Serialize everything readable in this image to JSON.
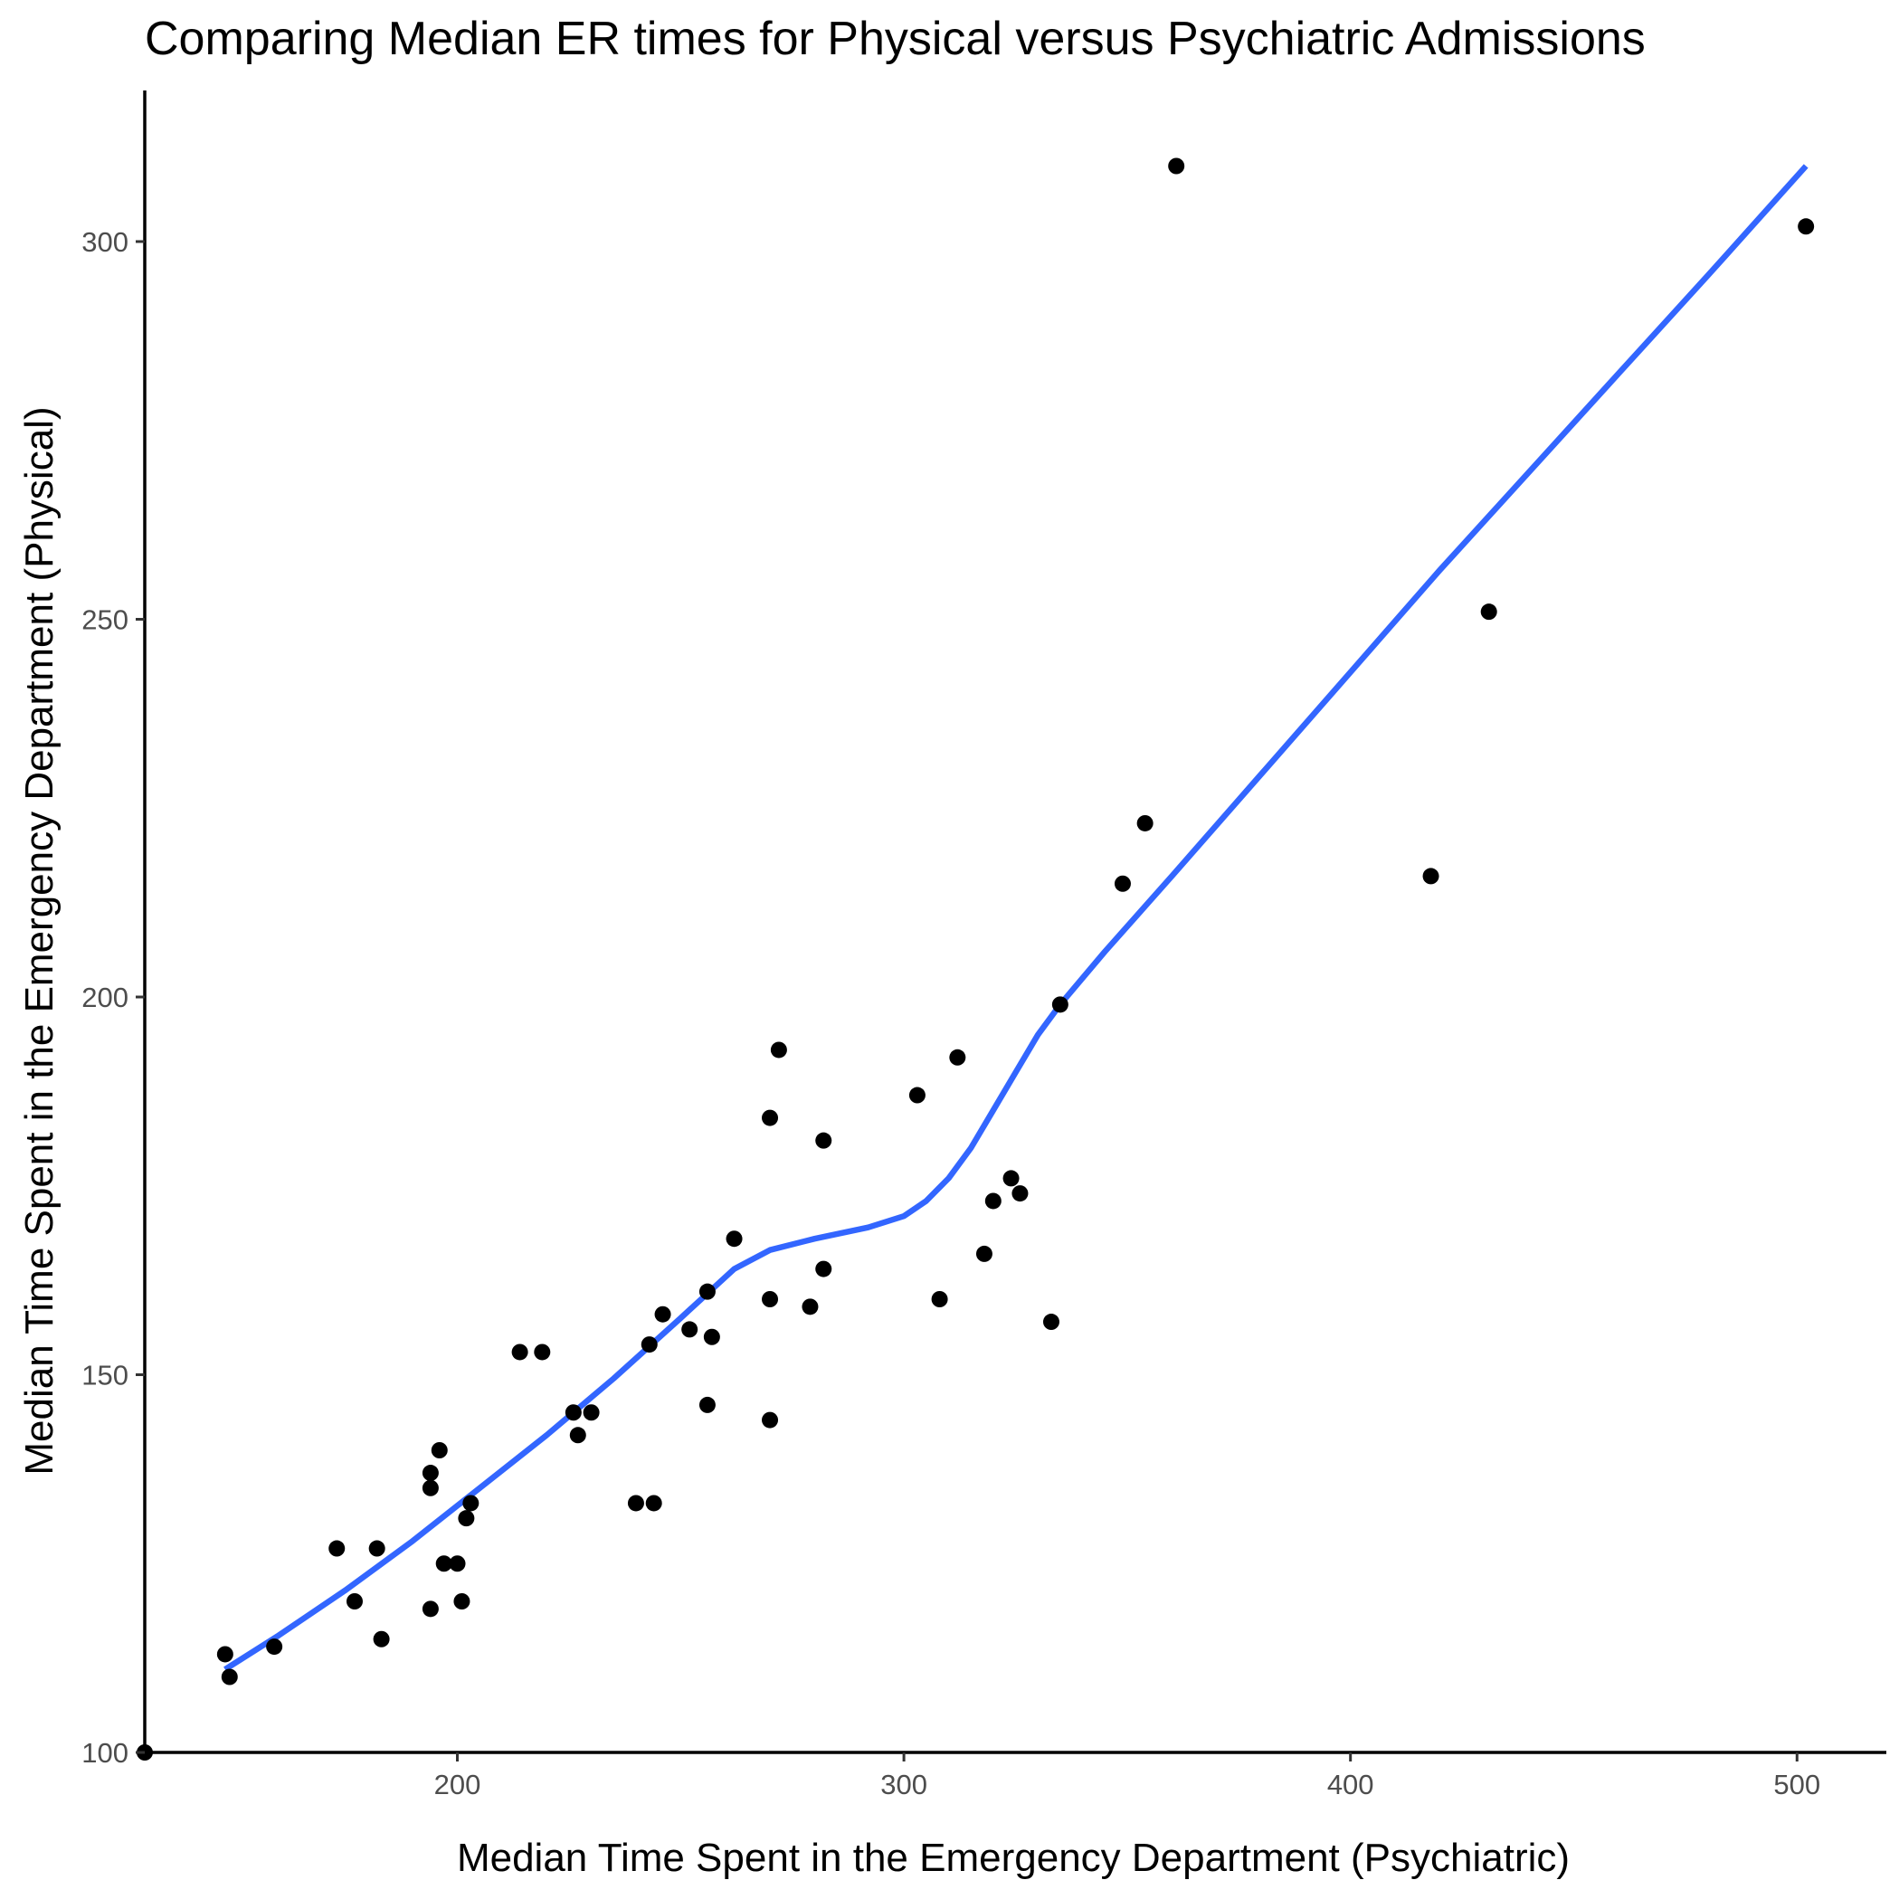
{
  "chart_data": {
    "type": "scatter",
    "title": "Comparing Median ER times for Physical versus Psychiatric Admissions",
    "xlabel": "Median Time Spent in the Emergency Department (Psychiatric)",
    "ylabel": "Median Time Spent in the Emergency Department (Physical)",
    "xlim": [
      130,
      520
    ],
    "ylim": [
      100,
      320
    ],
    "xticks": [
      200,
      300,
      400,
      500
    ],
    "yticks": [
      100,
      150,
      200,
      250,
      300
    ],
    "grid": false,
    "legend": "none",
    "colors": {
      "points": "#000000",
      "smooth": "#3366ff",
      "axis": "#000000",
      "tick_text": "#4d4d4d"
    },
    "points": [
      {
        "x": 130,
        "y": 100
      },
      {
        "x": 148,
        "y": 113
      },
      {
        "x": 149,
        "y": 110
      },
      {
        "x": 159,
        "y": 114
      },
      {
        "x": 173,
        "y": 127
      },
      {
        "x": 177,
        "y": 120
      },
      {
        "x": 182,
        "y": 127
      },
      {
        "x": 183,
        "y": 115
      },
      {
        "x": 194,
        "y": 119
      },
      {
        "x": 194,
        "y": 135
      },
      {
        "x": 194,
        "y": 137
      },
      {
        "x": 196,
        "y": 140
      },
      {
        "x": 197,
        "y": 125
      },
      {
        "x": 200,
        "y": 125
      },
      {
        "x": 201,
        "y": 120
      },
      {
        "x": 202,
        "y": 131
      },
      {
        "x": 203,
        "y": 133
      },
      {
        "x": 214,
        "y": 153
      },
      {
        "x": 219,
        "y": 153
      },
      {
        "x": 226,
        "y": 145
      },
      {
        "x": 227,
        "y": 142
      },
      {
        "x": 230,
        "y": 145
      },
      {
        "x": 240,
        "y": 133
      },
      {
        "x": 243,
        "y": 154
      },
      {
        "x": 244,
        "y": 133
      },
      {
        "x": 246,
        "y": 158
      },
      {
        "x": 252,
        "y": 156
      },
      {
        "x": 256,
        "y": 161
      },
      {
        "x": 256,
        "y": 146
      },
      {
        "x": 257,
        "y": 155
      },
      {
        "x": 262,
        "y": 168
      },
      {
        "x": 270,
        "y": 184
      },
      {
        "x": 270,
        "y": 160
      },
      {
        "x": 270,
        "y": 144
      },
      {
        "x": 272,
        "y": 193
      },
      {
        "x": 279,
        "y": 159
      },
      {
        "x": 282,
        "y": 181
      },
      {
        "x": 282,
        "y": 164
      },
      {
        "x": 303,
        "y": 187
      },
      {
        "x": 308,
        "y": 160
      },
      {
        "x": 312,
        "y": 192
      },
      {
        "x": 318,
        "y": 166
      },
      {
        "x": 320,
        "y": 173
      },
      {
        "x": 324,
        "y": 176
      },
      {
        "x": 326,
        "y": 174
      },
      {
        "x": 333,
        "y": 157
      },
      {
        "x": 335,
        "y": 199
      },
      {
        "x": 349,
        "y": 215
      },
      {
        "x": 354,
        "y": 223
      },
      {
        "x": 361,
        "y": 310
      },
      {
        "x": 418,
        "y": 216
      },
      {
        "x": 431,
        "y": 251
      },
      {
        "x": 502,
        "y": 302
      }
    ],
    "smooth": {
      "x": [
        148,
        160,
        175,
        190,
        205,
        220,
        235,
        250,
        262,
        270,
        280,
        292,
        300,
        305,
        310,
        315,
        320,
        325,
        330,
        335,
        345,
        360,
        380,
        400,
        420,
        440,
        460,
        480,
        502
      ],
      "y": [
        111,
        115.5,
        121.5,
        128,
        135,
        142,
        149.5,
        157.5,
        164,
        166.5,
        168,
        169.5,
        171,
        173,
        176,
        180,
        185,
        190,
        195,
        199,
        206,
        216,
        229.5,
        243,
        256.5,
        269.5,
        282.5,
        295.5,
        310
      ]
    }
  }
}
